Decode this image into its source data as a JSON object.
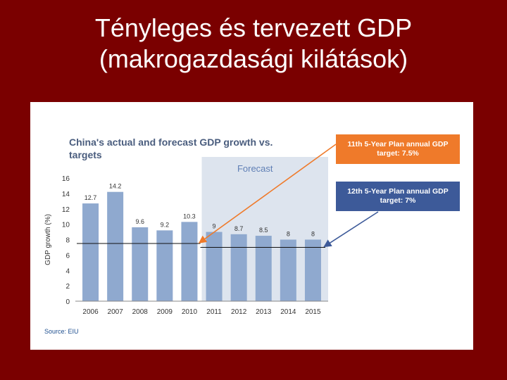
{
  "slide": {
    "title_line1": "Tényleges és tervezett GDP",
    "title_line2": "(makrogazdasági kilátások)"
  },
  "colors": {
    "background": "#7a0000",
    "bar": "#8fa9cf",
    "forecast_shade": "#dde4ee",
    "target_11": "#ef7a2a",
    "target_12": "#3d5a99"
  },
  "chart_data": {
    "type": "bar",
    "title": "China's actual and forecast GDP growth vs. targets",
    "xlabel": "",
    "ylabel": "GDP growth (%)",
    "ylim": [
      0,
      16
    ],
    "yticks": [
      "0",
      "2",
      "4",
      "6",
      "8",
      "10",
      "12",
      "14",
      "16"
    ],
    "categories": [
      "2006",
      "2007",
      "2008",
      "2009",
      "2010",
      "2011",
      "2012",
      "2013",
      "2014",
      "2015"
    ],
    "values": [
      12.7,
      14.2,
      9.6,
      9.2,
      10.3,
      9,
      8.7,
      8.5,
      8,
      8
    ],
    "value_labels": [
      "12.7",
      "14.2",
      "9.6",
      "9.2",
      "10.3",
      "9",
      "8.7",
      "8.5",
      "8",
      "8"
    ],
    "forecast_label": "Forecast",
    "forecast_from": "2011",
    "targets": [
      {
        "label": "11th 5-Year Plan annual GDP target: 7.5%",
        "value": 7.5,
        "from": "2006",
        "to": "2010"
      },
      {
        "label": "12th 5-Year Plan annual GDP target: 7%",
        "value": 7,
        "from": "2011",
        "to": "2015"
      }
    ],
    "source": "Source: EIU",
    "grid": false,
    "legend": "none"
  }
}
